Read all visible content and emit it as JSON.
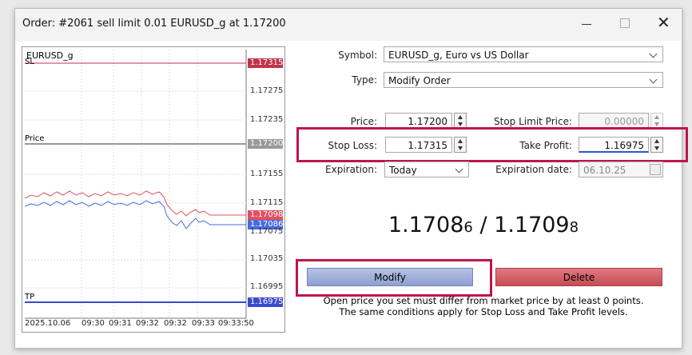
{
  "window": {
    "title": "Order: #2061 sell limit 0.01 EURUSD_g at 1.17200"
  },
  "chart": {
    "symbol": "EURUSD_g",
    "sl_label": "SL",
    "price_label": "Price",
    "tp_label": "TP",
    "price_labels": [
      "1.17315",
      "1.17275",
      "1.17235",
      "1.17200",
      "1.17155",
      "1.17115",
      "1.17098",
      "1.17086",
      "1.17075",
      "1.17035",
      "1.16995",
      "1.16975"
    ],
    "time_labels": [
      "2025.10.06",
      "09:30",
      "09:31",
      "09:32",
      "09:32",
      "09:33",
      "09:33:50"
    ]
  },
  "form": {
    "symbol_label": "Symbol:",
    "symbol": "EURUSD_g, Euro vs US Dollar",
    "type_label": "Type:",
    "type": "Modify Order",
    "price_label": "Price:",
    "price": "1.17200",
    "stop_limit_label": "Stop Limit Price:",
    "stop_limit": "0.00000",
    "stop_loss_label": "Stop Loss:",
    "stop_loss": "1.17315",
    "take_profit_label": "Take Profit:",
    "take_profit": "1.16975",
    "expiration_label": "Expiration:",
    "expiration": "Today",
    "expiration_date_label": "Expiration date:",
    "expiration_date": "06.10.25"
  },
  "quote": {
    "bid_main": "1.1708",
    "bid_last": "6",
    "separator": "/",
    "ask_main": "1.1709",
    "ask_last": "8"
  },
  "buttons": {
    "modify": "Modify",
    "delete": "Delete"
  },
  "notes": [
    "Open price you set must differ from market price by at least 0 points.",
    "The same conditions apply for Stop Loss and Take Profit levels."
  ]
}
